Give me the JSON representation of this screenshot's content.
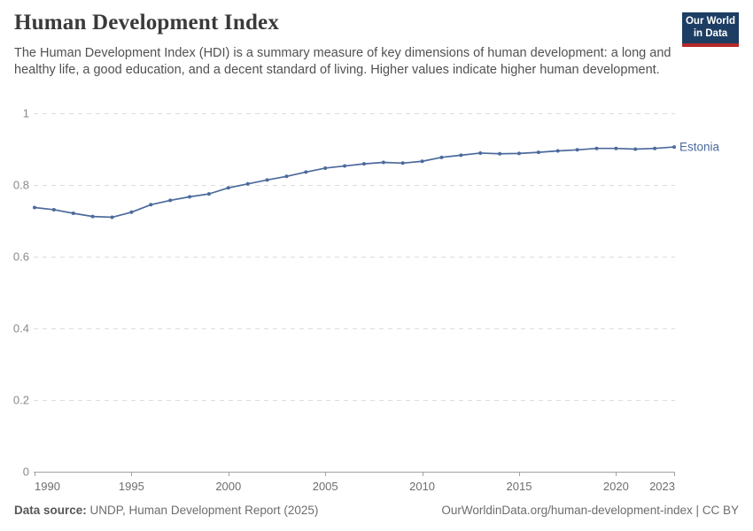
{
  "header": {
    "title": "Human Development Index",
    "subtitle": "The Human Development Index (HDI) is a summary measure of key dimensions of human development: a long and healthy life, a good education, and a decent standard of living. Higher values indicate higher human development.",
    "logo_line1": "Our World",
    "logo_line2": "in Data"
  },
  "chart_data": {
    "type": "line",
    "title": "Human Development Index",
    "series": [
      {
        "name": "Estonia",
        "x": [
          1990,
          1991,
          1992,
          1993,
          1994,
          1995,
          1996,
          1997,
          1998,
          1999,
          2000,
          2001,
          2002,
          2003,
          2004,
          2005,
          2006,
          2007,
          2008,
          2009,
          2010,
          2011,
          2012,
          2013,
          2014,
          2015,
          2016,
          2017,
          2018,
          2019,
          2020,
          2021,
          2022,
          2023
        ],
        "values": [
          0.737,
          0.731,
          0.721,
          0.712,
          0.71,
          0.724,
          0.745,
          0.757,
          0.767,
          0.775,
          0.792,
          0.803,
          0.814,
          0.824,
          0.836,
          0.847,
          0.853,
          0.859,
          0.863,
          0.861,
          0.866,
          0.877,
          0.883,
          0.889,
          0.887,
          0.888,
          0.891,
          0.895,
          0.898,
          0.902,
          0.902,
          0.9,
          0.902,
          0.906
        ]
      }
    ],
    "xlabel": "",
    "ylabel": "",
    "xlim": [
      1990,
      2023
    ],
    "ylim": [
      0,
      1
    ],
    "yticks": [
      0,
      0.2,
      0.4,
      0.6,
      0.8,
      1
    ],
    "ytick_labels": [
      "0",
      "0.2",
      "0.4",
      "0.6",
      "0.8",
      "1"
    ],
    "xticks": [
      1990,
      1995,
      2000,
      2005,
      2010,
      2015,
      2020,
      2023
    ],
    "xtick_labels": [
      "1990",
      "1995",
      "2000",
      "2005",
      "2010",
      "2015",
      "2020",
      "2023"
    ],
    "grid": "horizontal-dashed",
    "legend_position": "end-of-line-label",
    "entity_label": "Estonia",
    "line_color": "#4c6a9c",
    "grid_color": "#dddddd",
    "axis_color": "#a3a3a3",
    "ytick_label_color": "#8a8a8a",
    "xtick_label_color": "#6e6e6e"
  },
  "footer": {
    "source_label": "Data source:",
    "source_text": " UNDP, Human Development Report (2025)",
    "link_text": "OurWorldinData.org/human-development-index | CC BY"
  },
  "colors": {
    "accent_blue": "#4c6a9c",
    "logo_navy": "#1d3d63",
    "logo_red": "#b5292b",
    "title_text": "#3a3a3a",
    "subtitle_text": "#515151",
    "footer_text": "#6d6d6d"
  }
}
